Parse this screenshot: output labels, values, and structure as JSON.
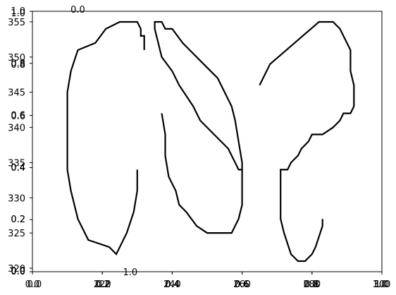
{
  "chart_data": {
    "type": "line",
    "title": "",
    "xlabel": "",
    "ylabel": "",
    "grid": false,
    "axes": {
      "main": {
        "xlim": [
          0.0,
          1.0
        ],
        "ylim": [
          0.0,
          1.0
        ],
        "xticks": [
          0.0,
          0.2,
          0.4,
          0.6,
          0.8,
          1.0
        ],
        "yticks": [
          0.0,
          0.2,
          0.4,
          0.6,
          0.8,
          1.0
        ],
        "xtick_labels": [
          "0.0",
          "0.2",
          "0.4",
          "0.6",
          "0.8",
          "1.0"
        ],
        "ytick_labels": [
          "0.0",
          "0.2",
          "0.4",
          "0.6",
          "0.8",
          "1.0"
        ]
      },
      "overlay_a": {
        "xlim": [
          0.0,
          1.0
        ],
        "ylim": [
          0.0,
          1.0
        ],
        "xticks": [
          0.0,
          0.2,
          0.4,
          0.6,
          0.8,
          1.0
        ],
        "yticks": [
          0.0,
          0.2,
          0.4,
          0.6,
          0.8,
          1.0
        ],
        "xtick_labels": [
          "0.0",
          "0.2",
          "0.4",
          "0.6",
          "0.8",
          "1.0"
        ],
        "ytick_labels": [
          "0.0",
          "0.2",
          "0.4",
          "0.6",
          "0.8",
          "1.0"
        ]
      },
      "overlay_b": {
        "xticks": [
          0.13,
          0.28
        ],
        "xtick_labels": [
          "0.0",
          "1.0"
        ],
        "yticks": [
          0.0,
          1.0
        ],
        "ytick_labels": [
          "1.0",
          "0.0"
        ]
      },
      "data": {
        "xlim": [
          200,
          300
        ],
        "ylim": [
          319.5,
          356.5
        ],
        "xticks": [
          220,
          240,
          260,
          280,
          300
        ],
        "yticks": [
          320,
          325,
          330,
          335,
          340,
          345,
          350,
          355
        ],
        "xtick_labels": [
          "220",
          "240",
          "260",
          "280",
          "300"
        ],
        "ytick_labels": [
          "320",
          "325",
          "330",
          "335",
          "340",
          "345",
          "350",
          "355"
        ]
      }
    },
    "series": [
      {
        "x": [
          230,
          230,
          229,
          227,
          224,
          222,
          216,
          213,
          211,
          210,
          210,
          210,
          210,
          211,
          213,
          218,
          221,
          225,
          228,
          230,
          231,
          231,
          232,
          232
        ],
        "y": [
          334,
          331,
          328,
          325,
          322,
          323,
          324,
          327,
          331,
          334,
          337,
          341,
          345,
          348,
          351,
          352,
          354,
          355,
          355,
          355,
          354,
          353,
          353,
          351
        ]
      },
      {
        "x": [
          237,
          238,
          238,
          239,
          241,
          242,
          244,
          247,
          250,
          252,
          257,
          259,
          260,
          260,
          260,
          259,
          258,
          257,
          255,
          253,
          249,
          245,
          243,
          240,
          238,
          237,
          235,
          235,
          235,
          236,
          237,
          240,
          242,
          246,
          248,
          250,
          254,
          256,
          258,
          259,
          260,
          260
        ],
        "y": [
          342,
          339,
          336,
          333,
          331,
          329,
          328,
          326,
          325,
          325,
          325,
          327,
          329,
          332,
          335,
          338,
          341,
          343,
          345,
          347,
          349,
          351,
          352,
          354,
          354,
          355,
          355,
          355,
          354,
          352,
          350,
          348,
          346,
          343,
          341,
          340,
          338,
          337,
          335,
          334,
          334,
          334
        ]
      },
      {
        "x": [
          265,
          268,
          275,
          282,
          284,
          286,
          288,
          289,
          291,
          291,
          292,
          292,
          291,
          289,
          288,
          286,
          283,
          280,
          279,
          277,
          276,
          274,
          273,
          271,
          271,
          271,
          272,
          274,
          276,
          277,
          278,
          280,
          281,
          283,
          283
        ],
        "y": [
          346,
          349,
          352,
          355,
          355,
          355,
          354,
          353,
          351,
          348,
          346,
          343,
          342,
          342,
          341,
          340,
          339,
          339,
          338,
          337,
          336,
          335,
          334,
          334,
          330,
          327,
          325,
          322,
          321,
          321,
          321,
          322,
          323,
          326,
          327
        ]
      }
    ]
  }
}
